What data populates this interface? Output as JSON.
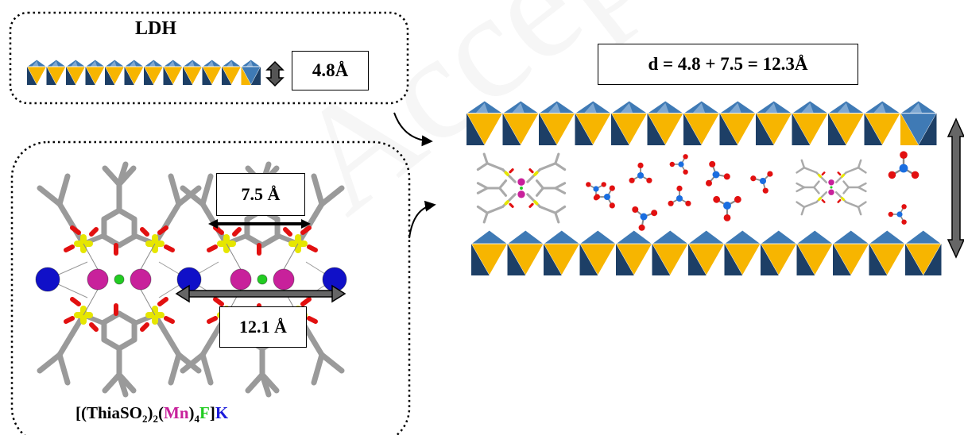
{
  "ldh": {
    "title": "LDH",
    "thickness": "4.8Å"
  },
  "macrocycle": {
    "length_label": "7.5 Å",
    "spacing_label": "12.1 Å",
    "formula": {
      "open": "[(ThiaSO",
      "sub1": "2",
      "mid1": ")",
      "sub2": "2",
      "mid2": "(",
      "metal": "Mn",
      "mid3": ")",
      "sub3": "4",
      "halide": "F",
      "close": "]",
      "cation": "K"
    }
  },
  "intercalated": {
    "equation": "d = 4.8 + 7.5 = 12.3Å"
  },
  "watermark": "Accepted Manuscript",
  "colors": {
    "octa_yellow": "#f7b500",
    "octa_blue": "#3f7ab5",
    "octa_dark": "#1d3f66",
    "mn": "#c8219b",
    "fluoride": "#22cc22",
    "potassium": "#1010c8",
    "oxygen": "#e21010",
    "sulfur": "#e6e600",
    "carbon": "#9a9a9a",
    "nitrogen": "#1a6ee0"
  }
}
